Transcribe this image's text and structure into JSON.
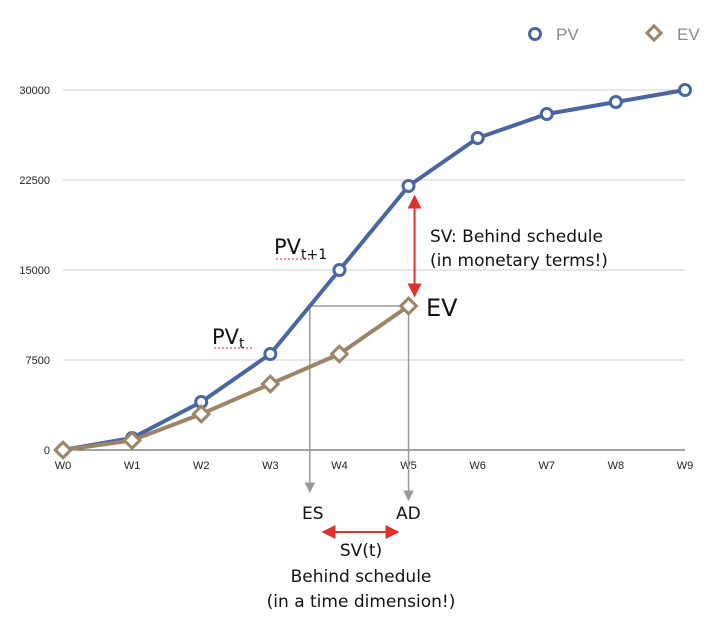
{
  "chart_data": {
    "type": "line",
    "categories": [
      "W0",
      "W1",
      "W2",
      "W3",
      "W4",
      "W5",
      "W6",
      "W7",
      "W8",
      "W9"
    ],
    "yticks": [
      0,
      7500,
      15000,
      22500,
      30000
    ],
    "ylim": [
      0,
      30000
    ],
    "grid": true,
    "legend_position": "top-right",
    "series": [
      {
        "name": "PV",
        "marker": "circle",
        "color": "#4a66a0",
        "values": [
          0,
          1000,
          4000,
          8000,
          15000,
          22000,
          26000,
          28000,
          29000,
          30000
        ]
      },
      {
        "name": "EV",
        "marker": "diamond",
        "color": "#9c8466",
        "values": [
          0,
          800,
          3000,
          5500,
          8000,
          12000,
          null,
          null,
          null,
          null
        ]
      }
    ],
    "annotations": {
      "pv_t": {
        "base": "PV",
        "sub": "t"
      },
      "pv_t1": {
        "base": "PV",
        "sub": "t+1"
      },
      "ev_label": "EV",
      "sv_money": [
        "SV: Behind schedule",
        "(in monetary terms!)"
      ],
      "es_label": "ES",
      "ad_label": "AD",
      "sv_time": [
        "SV(t)",
        "Behind schedule",
        "(in a time dimension!)"
      ]
    }
  }
}
